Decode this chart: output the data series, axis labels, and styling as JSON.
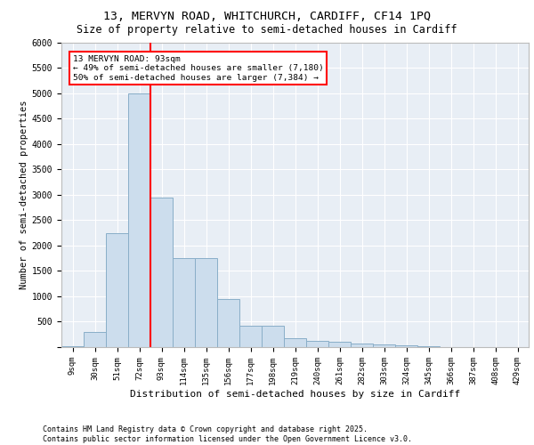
{
  "title1": "13, MERVYN ROAD, WHITCHURCH, CARDIFF, CF14 1PQ",
  "title2": "Size of property relative to semi-detached houses in Cardiff",
  "xlabel": "Distribution of semi-detached houses by size in Cardiff",
  "ylabel": "Number of semi-detached properties",
  "footnote": "Contains HM Land Registry data © Crown copyright and database right 2025.\nContains public sector information licensed under the Open Government Licence v3.0.",
  "bin_labels": [
    "9sqm",
    "30sqm",
    "51sqm",
    "72sqm",
    "93sqm",
    "114sqm",
    "135sqm",
    "156sqm",
    "177sqm",
    "198sqm",
    "219sqm",
    "240sqm",
    "261sqm",
    "282sqm",
    "303sqm",
    "324sqm",
    "345sqm",
    "366sqm",
    "387sqm",
    "408sqm",
    "429sqm"
  ],
  "bar_heights": [
    25,
    300,
    2250,
    5000,
    2950,
    1750,
    1750,
    950,
    420,
    420,
    175,
    125,
    100,
    75,
    50,
    30,
    10,
    5,
    5,
    2,
    2
  ],
  "bar_color": "#ccdded",
  "bar_edgecolor": "#89aec8",
  "vline_x": 3.5,
  "vline_color": "red",
  "annotation_title": "13 MERVYN ROAD: 93sqm",
  "annotation_line1": "← 49% of semi-detached houses are smaller (7,180)",
  "annotation_line2": "50% of semi-detached houses are larger (7,384) →",
  "ylim": [
    0,
    6000
  ],
  "yticks": [
    0,
    500,
    1000,
    1500,
    2000,
    2500,
    3000,
    3500,
    4000,
    4500,
    5000,
    5500,
    6000
  ],
  "bg_color": "#e8eef5",
  "grid_color": "#ffffff"
}
